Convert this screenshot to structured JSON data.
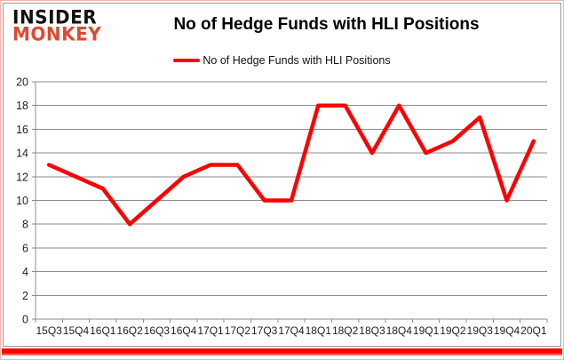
{
  "logo": {
    "line1": "INSIDER",
    "line2": "MONKEY"
  },
  "title": "No of Hedge Funds with HLI Positions",
  "legend": {
    "label": "No of Hedge Funds with HLI Positions"
  },
  "colors": {
    "series_line": "#fe0000",
    "gridline": "#8c8c8c",
    "axis_line": "#8c8c8c",
    "axis_label": "#1f1f1f",
    "logo_primary": "#111111",
    "logo_accent": "#e0492e",
    "frame_border": "#f2b4aa",
    "chart_box_border": "#9a9a9a",
    "bottom_band": "#fe0000"
  },
  "chart_data": {
    "type": "line",
    "title": "No of Hedge Funds with HLI Positions",
    "categories": [
      "15Q3",
      "15Q4",
      "16Q1",
      "16Q2",
      "16Q3",
      "16Q4",
      "17Q1",
      "17Q2",
      "17Q3",
      "17Q4",
      "18Q1",
      "18Q2",
      "18Q3",
      "18Q4",
      "19Q1",
      "19Q2",
      "19Q3",
      "19Q4",
      "20Q1"
    ],
    "series": [
      {
        "name": "No of Hedge Funds with HLI Positions",
        "color": "#fe0000",
        "values": [
          13,
          12,
          11,
          8,
          10,
          12,
          13,
          13,
          10,
          10,
          18,
          18,
          14,
          18,
          14,
          15,
          17,
          10,
          15
        ]
      }
    ],
    "xlabel": "",
    "ylabel": "",
    "ylim": [
      0,
      20
    ],
    "ytick_step": 2,
    "grid": true,
    "legend_position": "top-center"
  }
}
